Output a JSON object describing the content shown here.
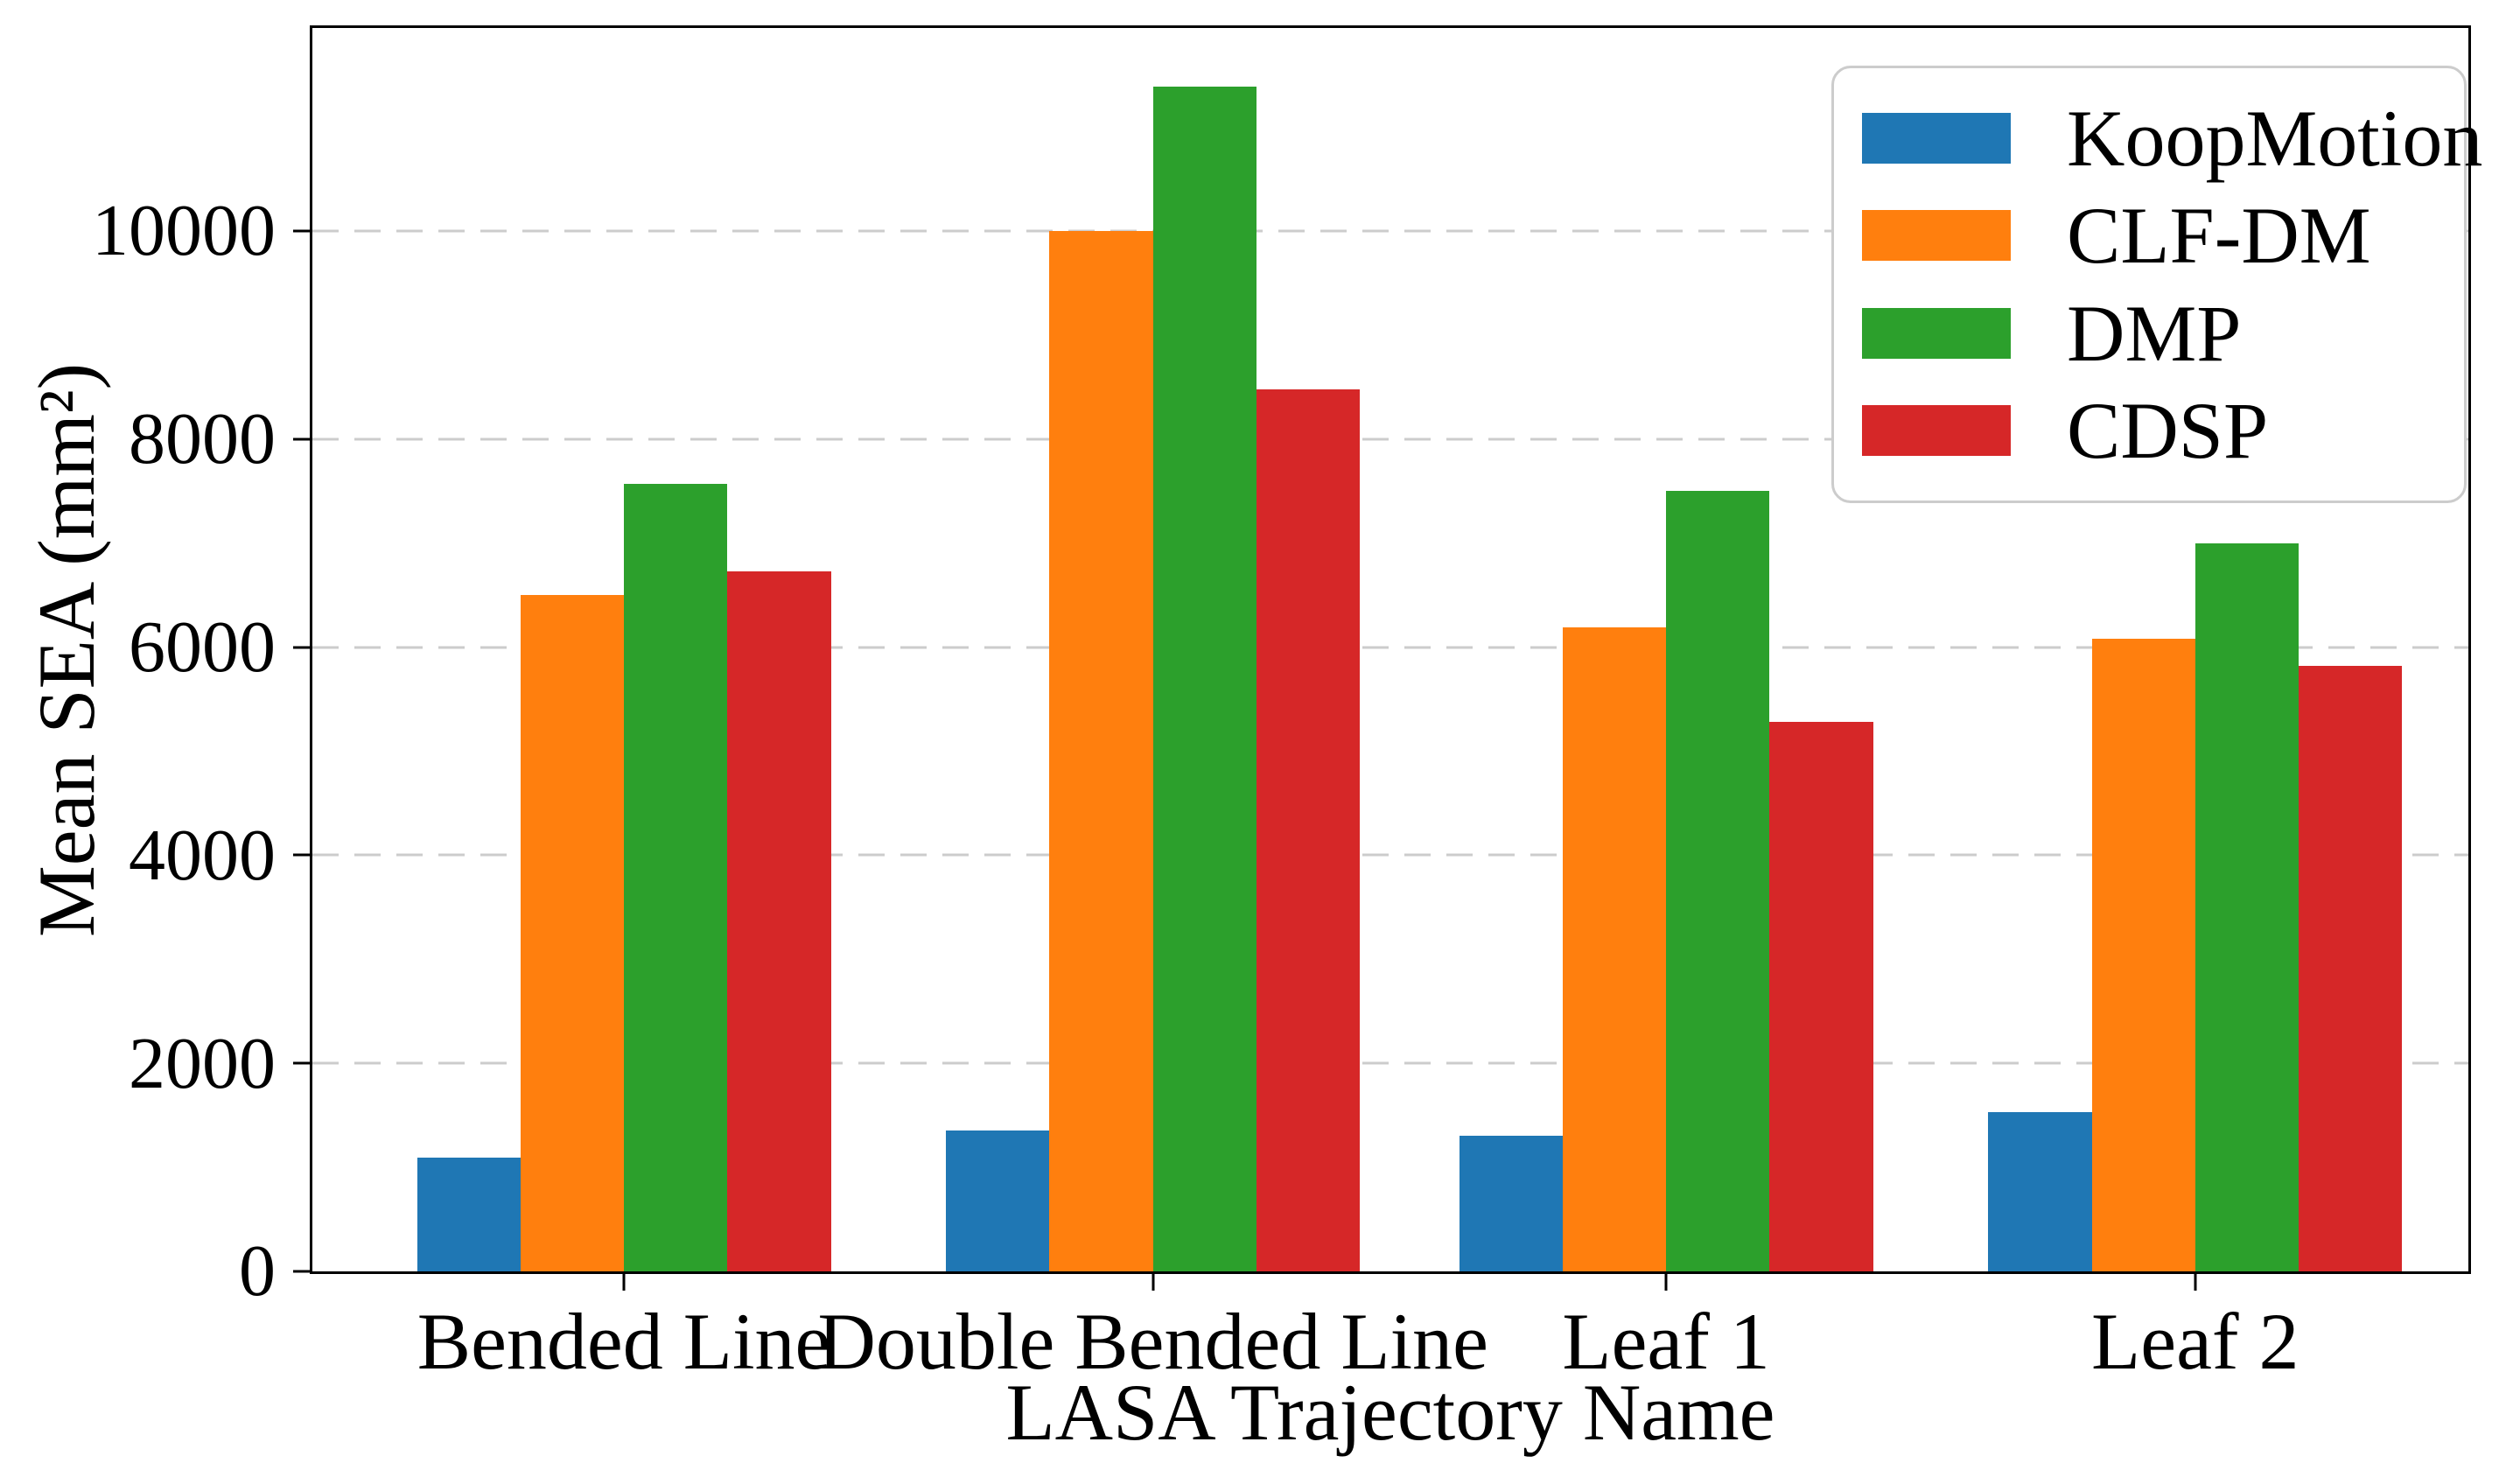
{
  "chart_data": {
    "type": "bar",
    "title": "",
    "xlabel": "LASA Trajectory Name",
    "ylabel": "Mean SEA (mm²)",
    "categories": [
      "Bended Line",
      "Double Bended Line",
      "Leaf 1",
      "Leaf 2"
    ],
    "series": [
      {
        "name": "KoopMotion",
        "color": "#1f77b4",
        "values": [
          1090,
          1350,
          1300,
          1530
        ]
      },
      {
        "name": "CLF-DM",
        "color": "#ff7f0e",
        "values": [
          6500,
          10000,
          6190,
          6080
        ]
      },
      {
        "name": "DMP",
        "color": "#2ca02c",
        "values": [
          7570,
          11390,
          7500,
          7000
        ]
      },
      {
        "name": "CDSP",
        "color": "#d62728",
        "values": [
          6730,
          8480,
          5280,
          5820
        ]
      }
    ],
    "ylim": [
      0,
      11950
    ],
    "yticks": [
      0,
      2000,
      4000,
      6000,
      8000,
      10000
    ],
    "grid": "horizontal dashed",
    "gridline_color": "#cccccc",
    "legend_position": "upper right",
    "legend_border_color": "#cccccc",
    "layout": {
      "group_centers_pct": [
        14.45,
        38.99,
        62.79,
        87.33
      ],
      "bar_width_pct": 4.8
    }
  }
}
